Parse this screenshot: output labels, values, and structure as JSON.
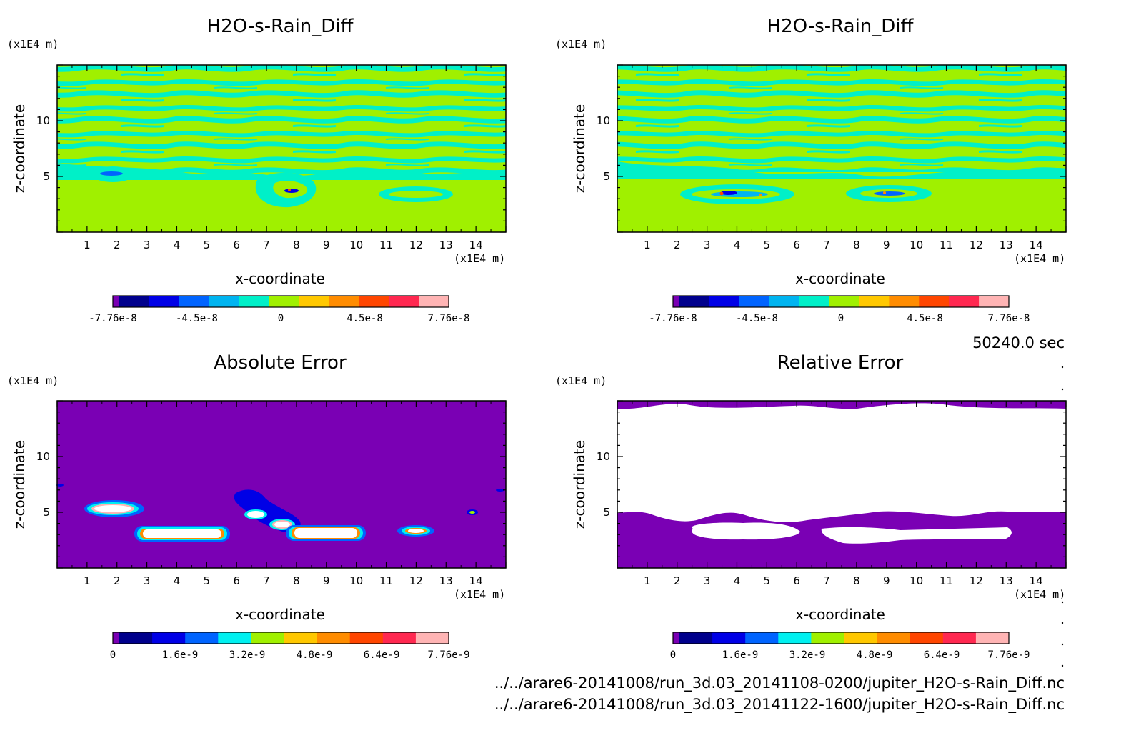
{
  "chart_data": [
    {
      "type": "heatmap",
      "title": "H2O-s-Rain_Diff",
      "xlabel": "x-coordinate",
      "ylabel": "z-coordinate",
      "x_unit": "(x1E4 m)",
      "y_unit": "(x1E4 m)",
      "x_ticks": [
        "1",
        "2",
        "3",
        "4",
        "5",
        "6",
        "7",
        "8",
        "9",
        "10",
        "11",
        "12",
        "13",
        "14"
      ],
      "y_ticks": [
        "5",
        "10"
      ],
      "xlim": [
        0,
        15
      ],
      "ylim": [
        0,
        15
      ],
      "colorbar": {
        "labels": [
          "-7.76e-8",
          "-4.5e-8",
          "0",
          "4.5e-8",
          "7.76e-8"
        ],
        "colors": [
          "#7a00b4",
          "#00008c",
          "#0000e6",
          "#0064ff",
          "#00b4f0",
          "#00f0c8",
          "#a0f000",
          "#ffc800",
          "#ff8c00",
          "#ff4600",
          "#ff2850",
          "#ffb4b4"
        ]
      },
      "regions": [
        {
          "kind": "lower-uniform",
          "value": "0",
          "z_below": 5.3
        },
        {
          "kind": "striped",
          "z_range": [
            5.3,
            14.8
          ]
        },
        {
          "kind": "blob",
          "x": 1.9,
          "z": 5.0
        },
        {
          "kind": "blob",
          "x": 7.8,
          "z": 3.9
        },
        {
          "kind": "blob",
          "x": 11.5,
          "z": 3.3
        }
      ]
    },
    {
      "type": "heatmap",
      "title": "H2O-s-Rain_Diff",
      "xlabel": "x-coordinate",
      "ylabel": "z-coordinate",
      "x_unit": "(x1E4 m)",
      "y_unit": "(x1E4 m)",
      "x_ticks": [
        "1",
        "2",
        "3",
        "4",
        "5",
        "6",
        "7",
        "8",
        "9",
        "10",
        "11",
        "12",
        "13",
        "14"
      ],
      "y_ticks": [
        "5",
        "10"
      ],
      "xlim": [
        0,
        15
      ],
      "ylim": [
        0,
        15
      ],
      "colorbar": {
        "labels": [
          "-7.76e-8",
          "-4.5e-8",
          "0",
          "4.5e-8",
          "7.76e-8"
        ],
        "colors": [
          "#7a00b4",
          "#00008c",
          "#0000e6",
          "#0064ff",
          "#00b4f0",
          "#00f0c8",
          "#a0f000",
          "#ffc800",
          "#ff8c00",
          "#ff4600",
          "#ff2850",
          "#ffb4b4"
        ]
      },
      "regions": [
        {
          "kind": "lower-uniform",
          "value": "0",
          "z_below": 5.3
        },
        {
          "kind": "striped",
          "z_range": [
            5.3,
            14.8
          ]
        },
        {
          "kind": "blob",
          "x": 4.4,
          "z": 3.3
        },
        {
          "kind": "blob",
          "x": 8.9,
          "z": 3.3
        }
      ]
    },
    {
      "type": "heatmap",
      "title": "Absolute Error",
      "xlabel": "x-coordinate",
      "ylabel": "z-coordinate",
      "x_unit": "(x1E4 m)",
      "y_unit": "(x1E4 m)",
      "x_ticks": [
        "1",
        "2",
        "3",
        "4",
        "5",
        "6",
        "7",
        "8",
        "9",
        "10",
        "11",
        "12",
        "13",
        "14"
      ],
      "y_ticks": [
        "5",
        "10"
      ],
      "xlim": [
        0,
        15
      ],
      "ylim": [
        0,
        15
      ],
      "colorbar": {
        "labels": [
          "0",
          "1.6e-9",
          "3.2e-9",
          "4.8e-9",
          "6.4e-9",
          "7.76e-9"
        ],
        "colors": [
          "#7a00b4",
          "#00008c",
          "#0000e6",
          "#0064ff",
          "#00f0f0",
          "#a0f000",
          "#ffc800",
          "#ff8c00",
          "#ff4600",
          "#ff2850",
          "#ffb4b4"
        ]
      },
      "regions": [
        {
          "kind": "background",
          "value": "0"
        },
        {
          "kind": "blob",
          "x": 1.9,
          "z": 5.3
        },
        {
          "kind": "blob",
          "x": 4.3,
          "z": 3.1
        },
        {
          "kind": "blob",
          "x": 6.9,
          "z": 4.8
        },
        {
          "kind": "blob",
          "x": 9.1,
          "z": 3.1
        },
        {
          "kind": "blob",
          "x": 12.0,
          "z": 3.3
        },
        {
          "kind": "blob",
          "x": 13.8,
          "z": 5.0
        }
      ]
    },
    {
      "type": "heatmap",
      "title": "Relative Error",
      "xlabel": "x-coordinate",
      "ylabel": "z-coordinate",
      "x_unit": "(x1E4 m)",
      "y_unit": "(x1E4 m)",
      "x_ticks": [
        "1",
        "2",
        "3",
        "4",
        "5",
        "6",
        "7",
        "8",
        "9",
        "10",
        "11",
        "12",
        "13",
        "14"
      ],
      "y_ticks": [
        "5",
        "10"
      ],
      "xlim": [
        0,
        15
      ],
      "ylim": [
        0,
        15
      ],
      "colorbar": {
        "labels": [
          "0",
          "1.6e-9",
          "3.2e-9",
          "4.8e-9",
          "6.4e-9",
          "7.76e-9"
        ],
        "colors": [
          "#7a00b4",
          "#00008c",
          "#0000e6",
          "#0064ff",
          "#00f0f0",
          "#a0f000",
          "#ffc800",
          "#ff8c00",
          "#ff4600",
          "#ff2850",
          "#ffb4b4"
        ]
      },
      "regions": [
        {
          "kind": "lower-band",
          "value": "0",
          "z_below": 5.0
        },
        {
          "kind": "top-band",
          "value": "0",
          "z_above": 14.5
        },
        {
          "kind": "undefined-middle",
          "color": "#ffffff"
        }
      ]
    }
  ],
  "footer": {
    "time": "50240.0 sec",
    "file1": "../../arare6-20141008/run_3d.03_20141108-0200/jupiter_H2O-s-Rain_Diff.nc",
    "file2": "../../arare6-20141008/run_3d.03_20141122-1600/jupiter_H2O-s-Rain_Diff.nc"
  }
}
